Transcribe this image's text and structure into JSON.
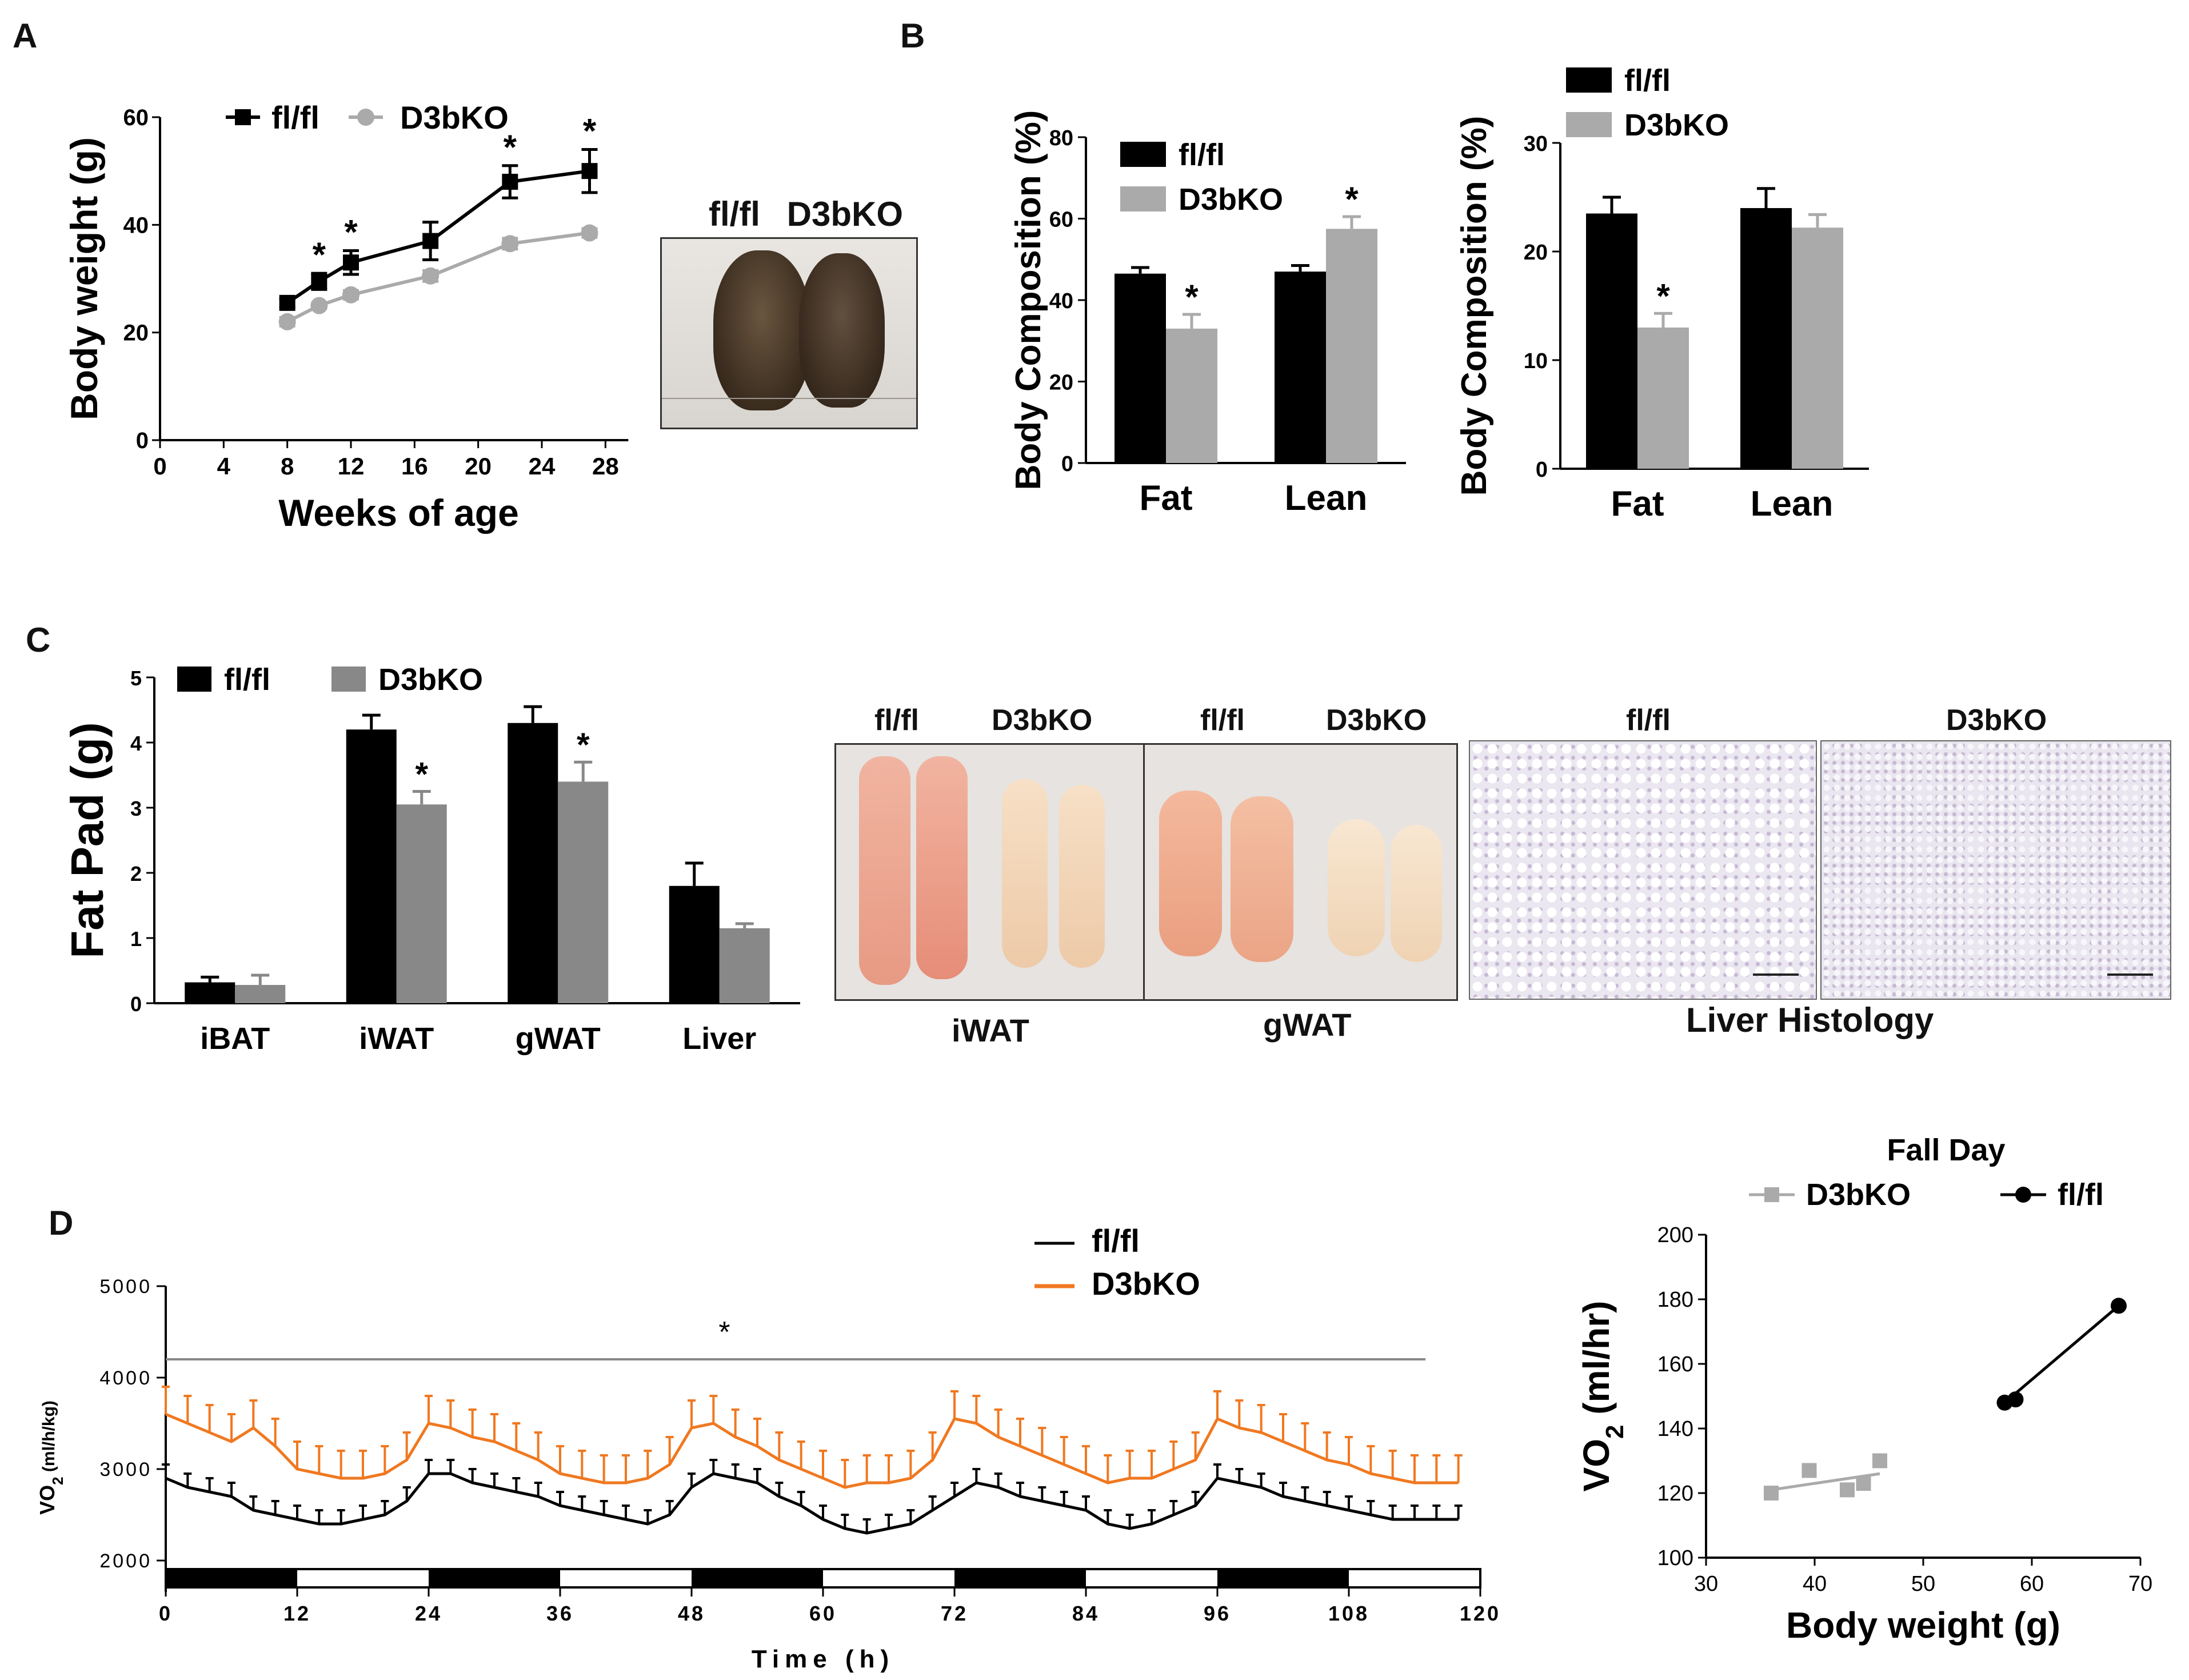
{
  "figure": {
    "panel_labels": [
      "A",
      "B",
      "C",
      "D"
    ],
    "colors": {
      "flfl": "#000000",
      "d3bko_gray": "#aaaaaa",
      "d3bko_orange": "#f07820",
      "photo_bg": "#e8e4e0"
    }
  },
  "panelA": {
    "chart_data": {
      "type": "line",
      "legend": [
        "fl/fl",
        "D3bKO"
      ],
      "xlabel": "Weeks of age",
      "ylabel": "Body weight (g)",
      "xlim": [
        0,
        30
      ],
      "ylim": [
        0,
        60
      ],
      "xticks": [
        0,
        4,
        8,
        12,
        16,
        20,
        24,
        28
      ],
      "yticks": [
        0,
        20,
        40,
        60
      ],
      "x": [
        8,
        10,
        12,
        17,
        22,
        27
      ],
      "series": [
        {
          "name": "fl/fl",
          "values": [
            25.5,
            29.5,
            33,
            37,
            48,
            50
          ],
          "errors": [
            0.8,
            1.5,
            2.2,
            3.5,
            3,
            4
          ]
        },
        {
          "name": "D3bKO",
          "values": [
            22,
            25,
            27,
            30.5,
            36.5,
            38.5
          ],
          "errors": [
            0.8,
            0.5,
            0.8,
            1,
            1,
            0.8
          ]
        }
      ],
      "significant_x": [
        10,
        12,
        22,
        27
      ],
      "significance_mark": "*"
    },
    "photo_labels": [
      "fl/fl",
      "D3bKO"
    ]
  },
  "panelB": {
    "charts": [
      {
        "chart_data": {
          "type": "bar",
          "ylabel": "Body Composition (%)",
          "legend": [
            "fl/fl",
            "D3bKO"
          ],
          "categories": [
            "Fat",
            "Lean"
          ],
          "ylim": [
            0,
            80
          ],
          "yticks": [
            0,
            20,
            40,
            60,
            80
          ],
          "series": [
            {
              "name": "fl/fl",
              "values": [
                46.5,
                47
              ],
              "errors": [
                1.5,
                1.5
              ]
            },
            {
              "name": "D3bKO",
              "values": [
                33,
                57.5
              ],
              "errors": [
                3.5,
                3
              ]
            }
          ],
          "significant": [
            [
              1,
              0
            ],
            [
              1,
              1
            ]
          ],
          "significance_mark": "*"
        }
      },
      {
        "chart_data": {
          "type": "bar",
          "ylabel": "Body Composition (%)",
          "legend": [
            "fl/fl",
            "D3bKO"
          ],
          "categories": [
            "Fat",
            "Lean"
          ],
          "ylim": [
            0,
            30
          ],
          "yticks": [
            0,
            10,
            20,
            30
          ],
          "series": [
            {
              "name": "fl/fl",
              "values": [
                23.5,
                24
              ],
              "errors": [
                1.5,
                1.8
              ]
            },
            {
              "name": "D3bKO",
              "values": [
                13,
                22.2
              ],
              "errors": [
                1.3,
                1.2
              ]
            }
          ],
          "significant": [
            [
              1,
              0
            ]
          ],
          "significance_mark": "*"
        }
      }
    ]
  },
  "panelC": {
    "chart_data": {
      "type": "bar",
      "ylabel": "Fat Pad  (g)",
      "legend": [
        "fl/fl",
        "D3bKO"
      ],
      "categories": [
        "iBAT",
        "iWAT",
        "gWAT",
        "Liver"
      ],
      "ylim": [
        0,
        5
      ],
      "yticks": [
        0,
        1,
        2,
        3,
        4,
        5
      ],
      "series": [
        {
          "name": "fl/fl",
          "values": [
            0.32,
            4.2,
            4.3,
            1.8
          ],
          "errors": [
            0.08,
            0.22,
            0.25,
            0.35
          ]
        },
        {
          "name": "D3bKO",
          "values": [
            0.28,
            3.05,
            3.4,
            1.15
          ],
          "errors": [
            0.15,
            0.2,
            0.3,
            0.07
          ]
        }
      ],
      "significant": [
        [
          1,
          1
        ],
        [
          1,
          2
        ]
      ],
      "significance_mark": "*"
    },
    "photos": {
      "iwat_labels": [
        "fl/fl",
        "D3bKO"
      ],
      "gwat_labels": [
        "fl/fl",
        "D3bKO"
      ],
      "iwat_caption": "iWAT",
      "gwat_caption": "gWAT",
      "histology_labels": [
        "fl/fl",
        "D3bKO"
      ],
      "histology_caption": "Liver Histology"
    }
  },
  "panelD": {
    "timecourse": {
      "chart_data": {
        "type": "line",
        "legend": [
          "fl/fl",
          "D3bKO"
        ],
        "xlabel": "Time (h)",
        "ylabel_main": "VO",
        "ylabel_sub": "2",
        "ylabel_unit": " (ml/h/kg)",
        "xlim": [
          0,
          120
        ],
        "ylim": [
          2000,
          5000
        ],
        "xticks": [
          0,
          12,
          24,
          36,
          48,
          60,
          72,
          84,
          96,
          108,
          120
        ],
        "yticks": [
          2000,
          3000,
          4000,
          5000
        ],
        "significance_mark": "*",
        "significance_bar_y": 4200,
        "significance_bar_x": [
          0,
          115
        ],
        "dark_periods": [
          [
            0,
            12
          ],
          [
            24,
            36
          ],
          [
            48,
            60
          ],
          [
            72,
            84
          ],
          [
            96,
            108
          ]
        ],
        "series": [
          {
            "name": "fl/fl",
            "x": [
              0,
              2,
              4,
              6,
              8,
              10,
              12,
              14,
              16,
              18,
              20,
              22,
              24,
              26,
              28,
              30,
              32,
              34,
              36,
              38,
              40,
              42,
              44,
              46,
              48,
              50,
              52,
              54,
              56,
              58,
              60,
              62,
              64,
              66,
              68,
              70,
              72,
              74,
              76,
              78,
              80,
              82,
              84,
              86,
              88,
              90,
              92,
              94,
              96,
              98,
              100,
              102,
              104,
              106,
              108,
              110,
              112,
              114,
              116,
              118
            ],
            "values": [
              2900,
              2800,
              2750,
              2700,
              2550,
              2500,
              2450,
              2400,
              2400,
              2450,
              2500,
              2650,
              2950,
              2950,
              2850,
              2800,
              2750,
              2700,
              2600,
              2550,
              2500,
              2450,
              2400,
              2500,
              2800,
              2950,
              2900,
              2850,
              2700,
              2600,
              2450,
              2350,
              2300,
              2350,
              2400,
              2550,
              2700,
              2850,
              2800,
              2700,
              2650,
              2600,
              2550,
              2400,
              2350,
              2400,
              2500,
              2600,
              2900,
              2850,
              2800,
              2700,
              2650,
              2600,
              2550,
              2500,
              2450,
              2450,
              2450,
              2450
            ],
            "errors": [
              150,
              150,
              150,
              150,
              150,
              150,
              150,
              150,
              150,
              150,
              150,
              150,
              150,
              150,
              150,
              150,
              150,
              150,
              150,
              150,
              150,
              150,
              150,
              150,
              150,
              150,
              150,
              150,
              150,
              150,
              150,
              150,
              150,
              150,
              150,
              150,
              150,
              150,
              150,
              150,
              150,
              150,
              150,
              150,
              150,
              150,
              150,
              150,
              150,
              150,
              150,
              150,
              150,
              150,
              150,
              150,
              150,
              150,
              150,
              150
            ]
          },
          {
            "name": "D3bKO",
            "x": [
              0,
              2,
              4,
              6,
              8,
              10,
              12,
              14,
              16,
              18,
              20,
              22,
              24,
              26,
              28,
              30,
              32,
              34,
              36,
              38,
              40,
              42,
              44,
              46,
              48,
              50,
              52,
              54,
              56,
              58,
              60,
              62,
              64,
              66,
              68,
              70,
              72,
              74,
              76,
              78,
              80,
              82,
              84,
              86,
              88,
              90,
              92,
              94,
              96,
              98,
              100,
              102,
              104,
              106,
              108,
              110,
              112,
              114,
              116,
              118
            ],
            "values": [
              3600,
              3500,
              3400,
              3300,
              3450,
              3250,
              3000,
              2950,
              2900,
              2900,
              2950,
              3100,
              3500,
              3450,
              3350,
              3300,
              3200,
              3100,
              2950,
              2900,
              2850,
              2850,
              2900,
              3050,
              3450,
              3500,
              3350,
              3250,
              3100,
              3000,
              2900,
              2800,
              2850,
              2850,
              2900,
              3100,
              3550,
              3500,
              3350,
              3250,
              3150,
              3050,
              2950,
              2850,
              2900,
              2900,
              3000,
              3100,
              3550,
              3450,
              3400,
              3300,
              3200,
              3100,
              3050,
              2950,
              2900,
              2850,
              2850,
              2850
            ],
            "errors": [
              300,
              300,
              300,
              300,
              300,
              300,
              300,
              300,
              300,
              300,
              300,
              300,
              300,
              300,
              300,
              300,
              300,
              300,
              300,
              300,
              300,
              300,
              300,
              300,
              300,
              300,
              300,
              300,
              300,
              300,
              300,
              300,
              300,
              300,
              300,
              300,
              300,
              300,
              300,
              300,
              300,
              300,
              300,
              300,
              300,
              300,
              300,
              300,
              300,
              300,
              300,
              300,
              300,
              300,
              300,
              300,
              300,
              300,
              300,
              300
            ]
          }
        ]
      }
    },
    "scatter": {
      "chart_data": {
        "type": "scatter",
        "title": "Fall Day",
        "legend": [
          "D3bKO",
          "fl/fl"
        ],
        "xlabel": "Body weight (g)",
        "ylabel_main": "VO",
        "ylabel_sub": "2",
        "ylabel_unit": " (ml/hr)",
        "xlim": [
          30,
          70
        ],
        "ylim": [
          100,
          200
        ],
        "xticks": [
          30,
          40,
          50,
          60,
          70
        ],
        "yticks": [
          100,
          120,
          140,
          160,
          180,
          200
        ],
        "series": [
          {
            "name": "D3bKO",
            "points": [
              [
                36,
                120
              ],
              [
                39.5,
                127
              ],
              [
                43,
                121
              ],
              [
                44.5,
                123
              ],
              [
                46,
                130
              ]
            ],
            "fit": [
              [
                36,
                121
              ],
              [
                46,
                126
              ]
            ]
          },
          {
            "name": "fl/fl",
            "points": [
              [
                57.5,
                148
              ],
              [
                58.5,
                149
              ],
              [
                68,
                178
              ]
            ],
            "fit": [
              [
                57.5,
                148
              ],
              [
                68,
                178
              ]
            ]
          }
        ]
      }
    }
  }
}
